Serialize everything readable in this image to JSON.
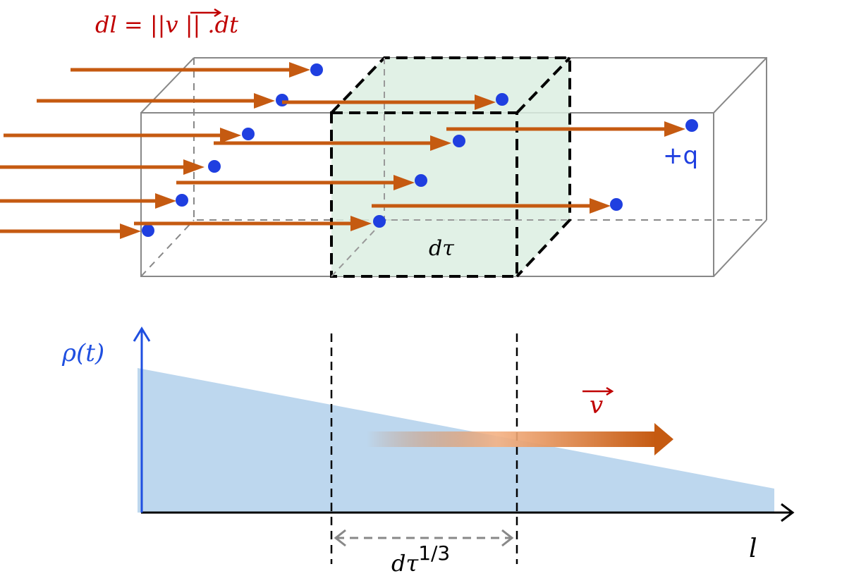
{
  "formula": "dl = ||v|| .dt",
  "formula_parts": {
    "left": "dl = ||",
    "vec": "v",
    "right": " || .dt"
  },
  "charge_label": "+q",
  "volume_label": "dτ",
  "density_label": "ρ(t)",
  "velocity_label": "v",
  "axis_label": "l",
  "width_label": {
    "base": "dτ",
    "exp": "1/3"
  },
  "colors": {
    "arrow": "#c55a11",
    "charge": "#1f3fe0",
    "formula": "#c00000",
    "density_fill": "#bdd7ee",
    "volume_fill": "#dcefe2",
    "axis_blue": "#1f4fe0"
  }
}
